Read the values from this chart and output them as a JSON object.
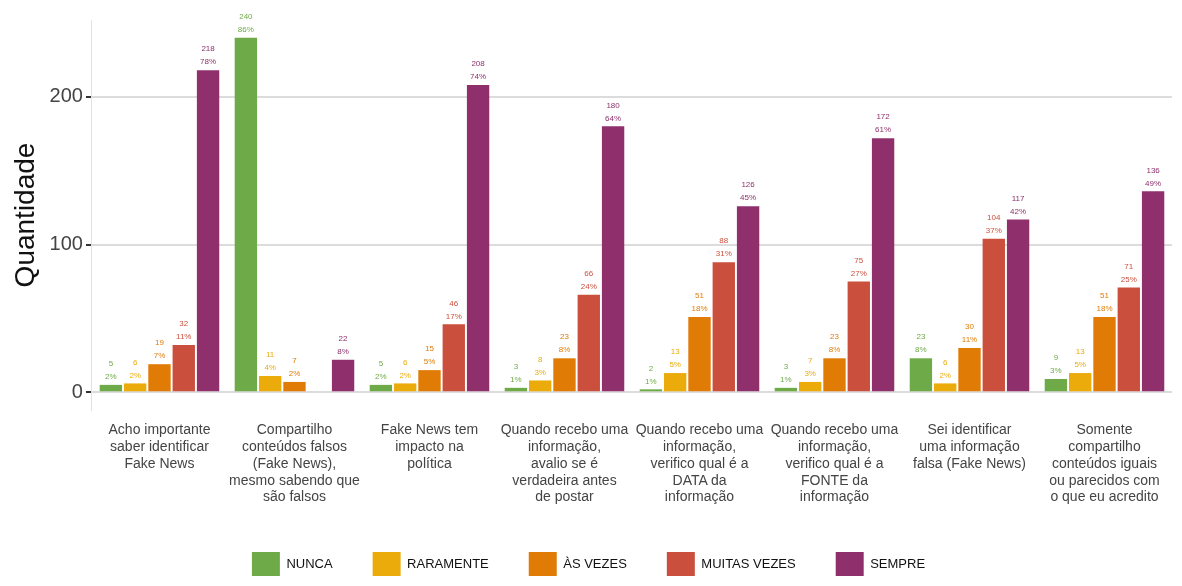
{
  "chart_data": {
    "type": "bar",
    "ylabel": "Quantidade",
    "categories": [
      "Acho importante saber identificar Fake News",
      "Compartilho conteúdos falsos (Fake News), mesmo sabendo que são falsos",
      "Fake News tem impacto na política",
      "Quando recebo uma informação, avalio se é verdadeira antes de postar",
      "Quando recebo uma informação, verifico qual é a DATA da informação",
      "Quando recebo uma informação, verifico qual é a FONTE da informação",
      "Sei identificar uma informação falsa (Fake News)",
      "Somente compartilho conteúdos iguais ou parecidos com o que eu acredito"
    ],
    "series": [
      {
        "name": "NUNCA",
        "color": "#6eab48",
        "values": [
          5,
          240,
          5,
          3,
          2,
          3,
          23,
          9
        ],
        "value_labels": [
          "5\n2%",
          "240\n86%",
          "5\n2%",
          "3\n1%",
          "2\n1%",
          "3\n1%",
          "23\n8%",
          "9\n3%"
        ]
      },
      {
        "name": "RARAMENTE",
        "color": "#ebab0b",
        "values": [
          6,
          11,
          6,
          8,
          13,
          7,
          6,
          13
        ],
        "value_labels": [
          "6\n2%",
          "11\n4%",
          "6\n2%",
          "8\n3%",
          "13\n5%",
          "7\n3%",
          "6\n2%",
          "13\n5%"
        ]
      },
      {
        "name": "ÀS VEZES",
        "color": "#e07b06",
        "values": [
          19,
          7,
          15,
          23,
          51,
          23,
          30,
          51
        ],
        "value_labels": [
          "19\n7%",
          "7\n2%",
          "15\n5%",
          "23\n8%",
          "51\n18%",
          "23\n8%",
          "30\n11%",
          "51\n18%"
        ]
      },
      {
        "name": "MUITAS VEZES",
        "color": "#cb4f3d",
        "values": [
          32,
          null,
          46,
          66,
          88,
          75,
          104,
          71
        ],
        "value_labels": [
          "32\n11%",
          null,
          "46\n17%",
          "66\n24%",
          "88\n31%",
          "75\n27%",
          "104\n37%",
          "71\n25%"
        ]
      },
      {
        "name": "SEMPRE",
        "color": "#8f306d",
        "values": [
          218,
          22,
          208,
          180,
          126,
          172,
          117,
          136
        ],
        "value_labels": [
          "218\n78%",
          "22\n8%",
          "208\n74%",
          "180\n64%",
          "126\n45%",
          "172\n61%",
          "117\n42%",
          "136\n49%"
        ]
      }
    ],
    "ylim": [
      -12,
      252
    ],
    "yticks": [
      0,
      100,
      200
    ],
    "grid": "y",
    "legend": "bottom"
  }
}
